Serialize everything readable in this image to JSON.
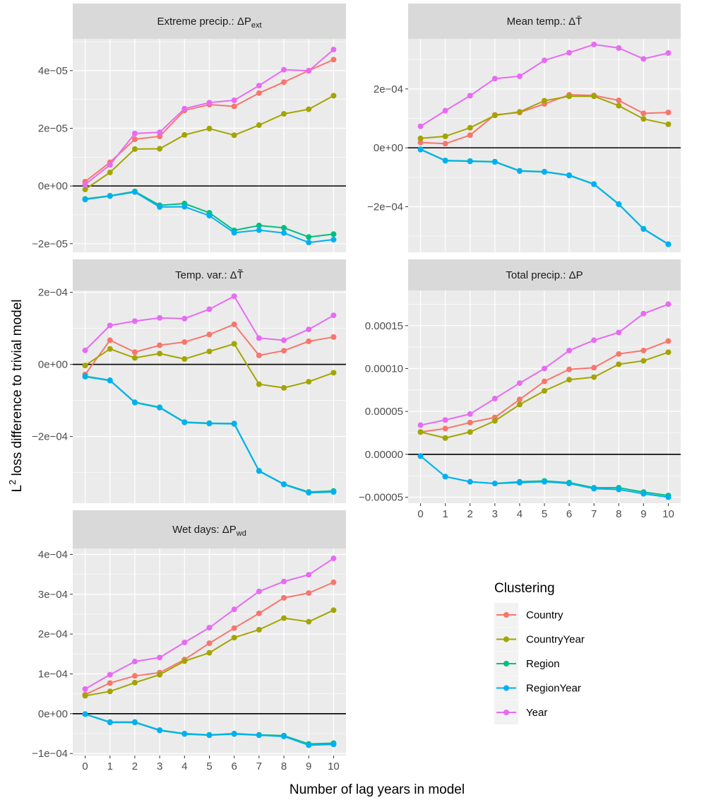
{
  "chart_data": {
    "type": "line",
    "xlabel": "Number of lag years in model",
    "ylabel": "L² loss difference to trivial model",
    "ylabel_base": "L",
    "ylabel_sup": "2",
    "ylabel_rest": " loss difference to trivial model",
    "x": [
      0,
      1,
      2,
      3,
      4,
      5,
      6,
      7,
      8,
      9,
      10
    ],
    "x_tick_labels": [
      "0",
      "1",
      "2",
      "3",
      "4",
      "5",
      "6",
      "7",
      "8",
      "9",
      "10"
    ],
    "legend": {
      "title": "Clustering",
      "entries": [
        {
          "name": "Country",
          "color": "#F8766D"
        },
        {
          "name": "CountryYear",
          "color": "#A3A500"
        },
        {
          "name": "Region",
          "color": "#00BF7D"
        },
        {
          "name": "RegionYear",
          "color": "#00B0F6"
        },
        {
          "name": "Year",
          "color": "#E76BF3"
        }
      ]
    },
    "panels": [
      {
        "id": "extreme-precip",
        "title": "Extreme precip.: ΔP",
        "title_sub": "ext",
        "ylim": [
          -2.3e-05,
          5.1e-05
        ],
        "y_ticks": [
          -2e-05,
          0,
          2e-05,
          4e-05
        ],
        "y_tick_labels": [
          "−2e−05",
          "0e+00",
          "2e−05",
          "4e−05"
        ],
        "series": [
          {
            "name": "Country",
            "values": [
              1.5e-06,
              8.2e-06,
              1.62e-05,
              1.72e-05,
              2.62e-05,
              2.82e-05,
              2.76e-05,
              3.22e-05,
              3.6e-05,
              4e-05,
              4.38e-05
            ]
          },
          {
            "name": "CountryYear",
            "values": [
              -1.2e-06,
              4.7e-06,
              1.28e-05,
              1.29e-05,
              1.77e-05,
              1.99e-05,
              1.76e-05,
              2.11e-05,
              2.5e-05,
              2.66e-05,
              3.13e-05
            ]
          },
          {
            "name": "Region",
            "values": [
              -4.5e-06,
              -3.4e-06,
              -1.9e-06,
              -6.7e-06,
              -6.1e-06,
              -9.3e-06,
              -1.54e-05,
              -1.37e-05,
              -1.45e-05,
              -1.77e-05,
              -1.67e-05
            ]
          },
          {
            "name": "RegionYear",
            "values": [
              -4.7e-06,
              -3.5e-06,
              -2.1e-06,
              -7.3e-06,
              -7.2e-06,
              -1.03e-05,
              -1.62e-05,
              -1.53e-05,
              -1.63e-05,
              -1.96e-05,
              -1.86e-05
            ]
          },
          {
            "name": "Year",
            "values": [
              5e-07,
              7.3e-06,
              1.82e-05,
              1.86e-05,
              2.68e-05,
              2.89e-05,
              2.97e-05,
              3.48e-05,
              4.03e-05,
              3.99e-05,
              4.73e-05
            ]
          }
        ]
      },
      {
        "id": "mean-temp",
        "title": "Mean temp.: ΔT̄",
        "title_sub": "",
        "ylim": [
          -0.000355,
          0.00037
        ],
        "y_ticks": [
          -0.0002,
          0,
          0.0002
        ],
        "y_tick_labels": [
          "−2e−04",
          "0e+00",
          "2e−04"
        ],
        "series": [
          {
            "name": "Country",
            "values": [
              1.8e-05,
              1.4e-05,
              4.3e-05,
              0.000112,
              0.00012,
              0.000149,
              0.00018,
              0.000178,
              0.000161,
              0.000117,
              0.00012
            ]
          },
          {
            "name": "CountryYear",
            "values": [
              3.2e-05,
              3.9e-05,
              6.8e-05,
              0.00011,
              0.000122,
              0.00016,
              0.000175,
              0.000175,
              0.000143,
              9.8e-05,
              8e-05
            ]
          },
          {
            "name": "Region",
            "values": [
              -5e-06,
              -4.3e-05,
              -4.5e-05,
              -4.7e-05,
              -7.8e-05,
              -8.1e-05,
              -9.3e-05,
              -0.000123,
              -0.000191,
              -0.000275,
              -0.000327
            ]
          },
          {
            "name": "RegionYear",
            "values": [
              -6e-06,
              -4.4e-05,
              -4.6e-05,
              -4.8e-05,
              -7.9e-05,
              -8.2e-05,
              -9.4e-05,
              -0.000124,
              -0.000192,
              -0.000276,
              -0.000328
            ]
          },
          {
            "name": "Year",
            "values": [
              7.3e-05,
              0.000126,
              0.000177,
              0.000235,
              0.000243,
              0.000297,
              0.000323,
              0.000351,
              0.000339,
              0.000302,
              0.000322
            ]
          }
        ]
      },
      {
        "id": "temp-var",
        "title": "Temp. var.: ΔT̃",
        "title_sub": "",
        "ylim": [
          -0.000385,
          0.000205
        ],
        "y_ticks": [
          -0.0002,
          0,
          0.0002
        ],
        "y_tick_labels": [
          "−2e−04",
          "0e+00",
          "2e−04"
        ],
        "series": [
          {
            "name": "Country",
            "values": [
              -2.8e-05,
              6.7e-05,
              3.4e-05,
              5.3e-05,
              6.2e-05,
              8.3e-05,
              0.000111,
              2.5e-05,
              3.8e-05,
              6.4e-05,
              7.6e-05
            ]
          },
          {
            "name": "CountryYear",
            "values": [
              -3e-06,
              4.3e-05,
              1.8e-05,
              3e-05,
              1.5e-05,
              3.6e-05,
              5.7e-05,
              -5.5e-05,
              -6.5e-05,
              -4.8e-05,
              -2.3e-05
            ]
          },
          {
            "name": "Region",
            "values": [
              -3.3e-05,
              -4.4e-05,
              -0.000105,
              -0.000119,
              -0.00016,
              -0.000163,
              -0.000164,
              -0.000295,
              -0.000332,
              -0.000354,
              -0.000351
            ]
          },
          {
            "name": "RegionYear",
            "values": [
              -3.4e-05,
              -4.5e-05,
              -0.000106,
              -0.00012,
              -0.000161,
              -0.000164,
              -0.000165,
              -0.000296,
              -0.000333,
              -0.000356,
              -0.000354
            ]
          },
          {
            "name": "Year",
            "values": [
              3.9e-05,
              0.000108,
              0.00012,
              0.000129,
              0.000127,
              0.000153,
              0.000189,
              7.3e-05,
              6.7e-05,
              9.7e-05,
              0.000136
            ]
          }
        ]
      },
      {
        "id": "total-precip",
        "title": "Total precip.: ΔP",
        "title_sub": "",
        "ylim": [
          -5.7e-05,
          0.000191
        ],
        "y_ticks": [
          -5e-05,
          0,
          5e-05,
          0.0001,
          0.00015
        ],
        "y_tick_labels": [
          "−0.00005",
          "0.00000",
          "0.00005",
          "0.00010",
          "0.00015"
        ],
        "series": [
          {
            "name": "Country",
            "values": [
              2.6e-05,
              3e-05,
              3.7e-05,
              4.3e-05,
              6.4e-05,
              8.5e-05,
              9.9e-05,
              0.000101,
              0.000117,
              0.000121,
              0.000132
            ]
          },
          {
            "name": "CountryYear",
            "values": [
              2.6e-05,
              1.9e-05,
              2.6e-05,
              3.9e-05,
              5.8e-05,
              7.4e-05,
              8.7e-05,
              9e-05,
              0.000105,
              0.000109,
              0.000119
            ]
          },
          {
            "name": "Region",
            "values": [
              -2e-06,
              -2.6e-05,
              -3.2e-05,
              -3.4e-05,
              -3.2e-05,
              -3.1e-05,
              -3.3e-05,
              -3.9e-05,
              -3.9e-05,
              -4.4e-05,
              -4.8e-05
            ]
          },
          {
            "name": "RegionYear",
            "values": [
              -2e-06,
              -2.6e-05,
              -3.2e-05,
              -3.4e-05,
              -3.3e-05,
              -3.2e-05,
              -3.4e-05,
              -4e-05,
              -4.1e-05,
              -4.6e-05,
              -5e-05
            ]
          },
          {
            "name": "Year",
            "values": [
              3.4e-05,
              4e-05,
              4.7e-05,
              6.5e-05,
              8.3e-05,
              0.0001,
              0.000121,
              0.000133,
              0.000142,
              0.000164,
              0.000175
            ]
          }
        ]
      },
      {
        "id": "wet-days",
        "title": "Wet days: ΔP",
        "title_sub": "wd",
        "ylim": [
          -0.000105,
          0.000415
        ],
        "y_ticks": [
          -0.0001,
          0,
          0.0001,
          0.0002,
          0.0003,
          0.0004
        ],
        "y_tick_labels": [
          "−1e−04",
          "0e+00",
          "1e−04",
          "2e−04",
          "3e−04",
          "4e−04"
        ],
        "series": [
          {
            "name": "Country",
            "values": [
              4.8e-05,
              7.7e-05,
              9.5e-05,
              0.000103,
              0.000136,
              0.000177,
              0.000215,
              0.000252,
              0.000291,
              0.000303,
              0.00033
            ]
          },
          {
            "name": "CountryYear",
            "values": [
              4.5e-05,
              5.6e-05,
              7.8e-05,
              9.8e-05,
              0.000132,
              0.000153,
              0.000191,
              0.000211,
              0.00024,
              0.000231,
              0.00026
            ]
          },
          {
            "name": "Region",
            "values": [
              -1e-06,
              -2.1e-05,
              -2.1e-05,
              -4.1e-05,
              -5e-05,
              -5.3e-05,
              -5e-05,
              -5.3e-05,
              -5.5e-05,
              -7.6e-05,
              -7.4e-05
            ]
          },
          {
            "name": "RegionYear",
            "values": [
              -1e-06,
              -2.2e-05,
              -2.2e-05,
              -4.2e-05,
              -5.1e-05,
              -5.4e-05,
              -5.1e-05,
              -5.4e-05,
              -5.7e-05,
              -7.9e-05,
              -7.7e-05
            ]
          },
          {
            "name": "Year",
            "values": [
              6.2e-05,
              9.8e-05,
              0.000131,
              0.000141,
              0.000179,
              0.000216,
              0.000262,
              0.000307,
              0.000332,
              0.000349,
              0.00039
            ]
          }
        ]
      }
    ]
  }
}
